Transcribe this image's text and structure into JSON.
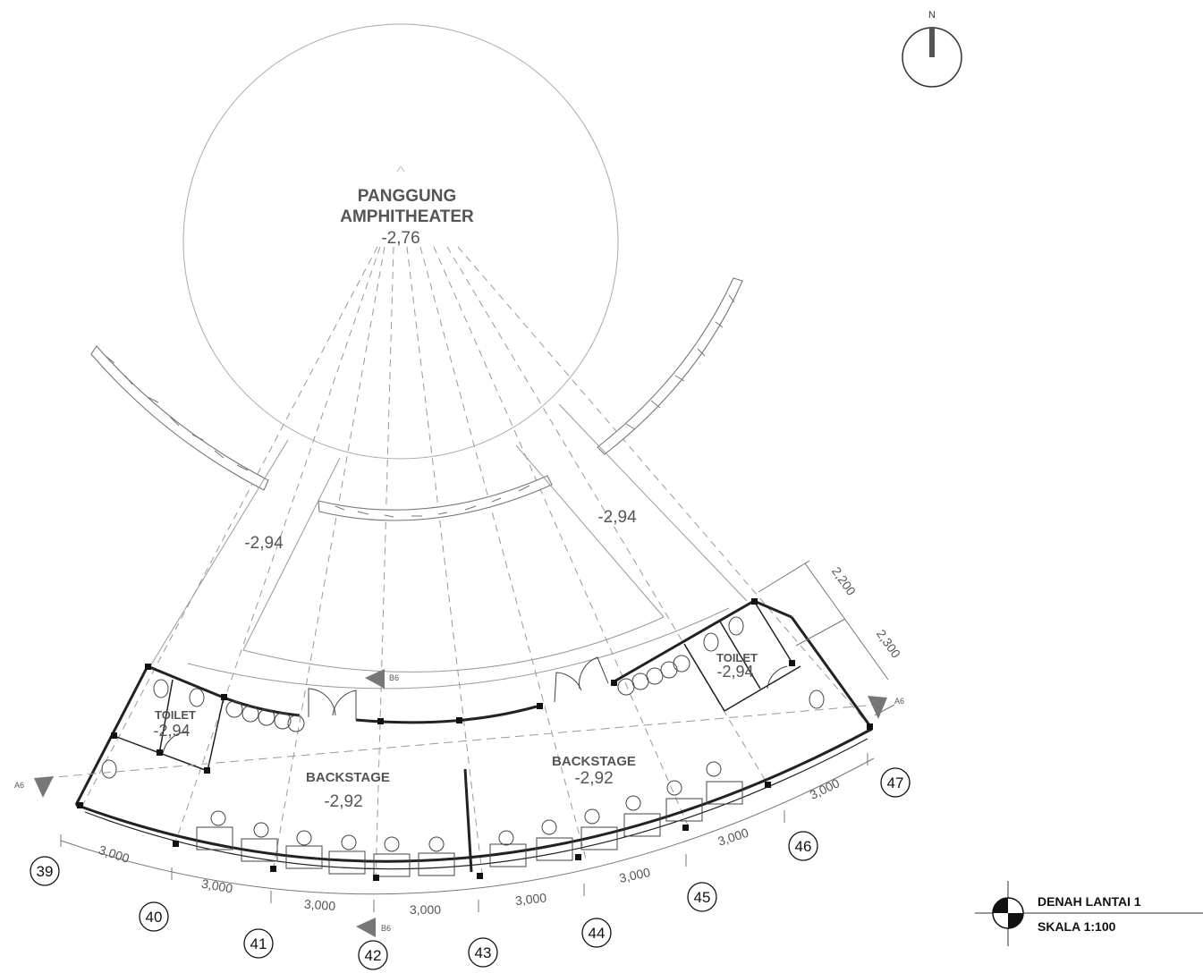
{
  "title_block": {
    "title": "DENAH LANTAI 1",
    "scale": "SKALA 1:100"
  },
  "north_arrow": {
    "label": "N",
    "icon": "north-arrow-icon"
  },
  "rooms": {
    "stage": {
      "name_line1": "PANGGUNG",
      "name_line2": "AMPHITHEATER",
      "level": "-2,76"
    },
    "backstage_left": {
      "name": "BACKSTAGE",
      "level": "-2,92"
    },
    "backstage_right": {
      "name": "BACKSTAGE",
      "level": "-2,92"
    },
    "toilet_left": {
      "name": "TOILET",
      "level": "-2,94"
    },
    "toilet_right": {
      "name": "TOILET",
      "level": "-2,94"
    }
  },
  "corridor_levels": {
    "left": "-2,94",
    "right": "-2,94"
  },
  "section_marks": {
    "a_left": "A6",
    "a_right": "A6",
    "b_top": "B6",
    "b_bottom": "B6"
  },
  "grid_lines": [
    "39",
    "40",
    "41",
    "42",
    "43",
    "44",
    "45",
    "46",
    "47"
  ],
  "dimensions": {
    "bays": [
      "3,000",
      "3,000",
      "3,000",
      "3,000",
      "3,000",
      "3,000",
      "3,000",
      "3,000"
    ],
    "right_upper": "2,200",
    "right_lower": "2,300"
  },
  "colors": {
    "line": "#222222",
    "text": "#555555",
    "marker": "#777777"
  }
}
